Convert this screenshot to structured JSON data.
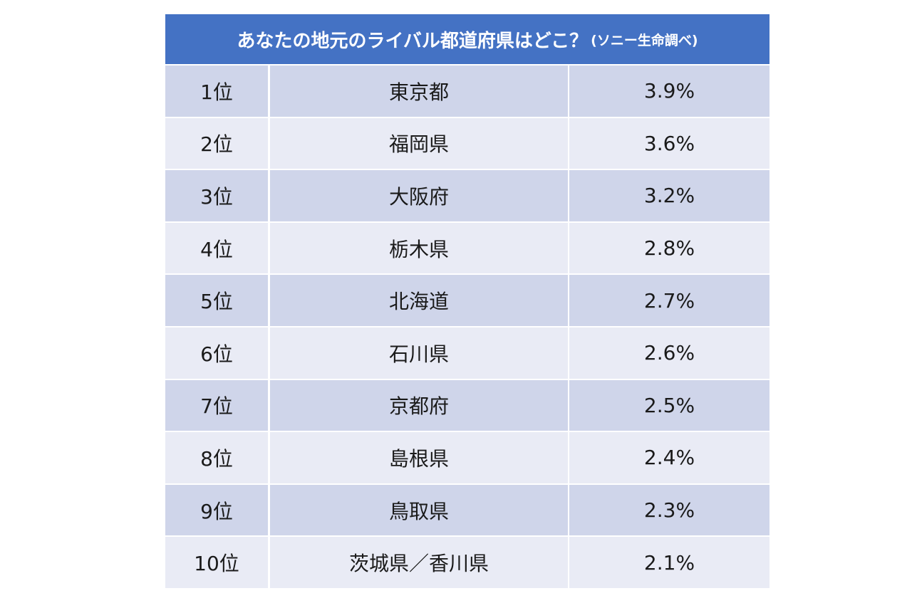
{
  "table": {
    "title": "あなたの地元のライバル都道府県はどこ？",
    "source": "(ソニー生命調べ)",
    "rows": [
      [
        "1位",
        "東京都",
        "3.9%"
      ],
      [
        "2位",
        "福岡県",
        "3.6%"
      ],
      [
        "3位",
        "大阪府",
        "3.2%"
      ],
      [
        "4位",
        "栃木県",
        "2.8%"
      ],
      [
        "5位",
        "北海道",
        "2.7%"
      ],
      [
        "6位",
        "石川県",
        "2.6%"
      ],
      [
        "7位",
        "京都府",
        "2.5%"
      ],
      [
        "8位",
        "島根県",
        "2.4%"
      ],
      [
        "9位",
        "鳥取県",
        "2.3%"
      ],
      [
        "10位",
        "茨城県／香川県",
        "2.1%"
      ]
    ]
  }
}
